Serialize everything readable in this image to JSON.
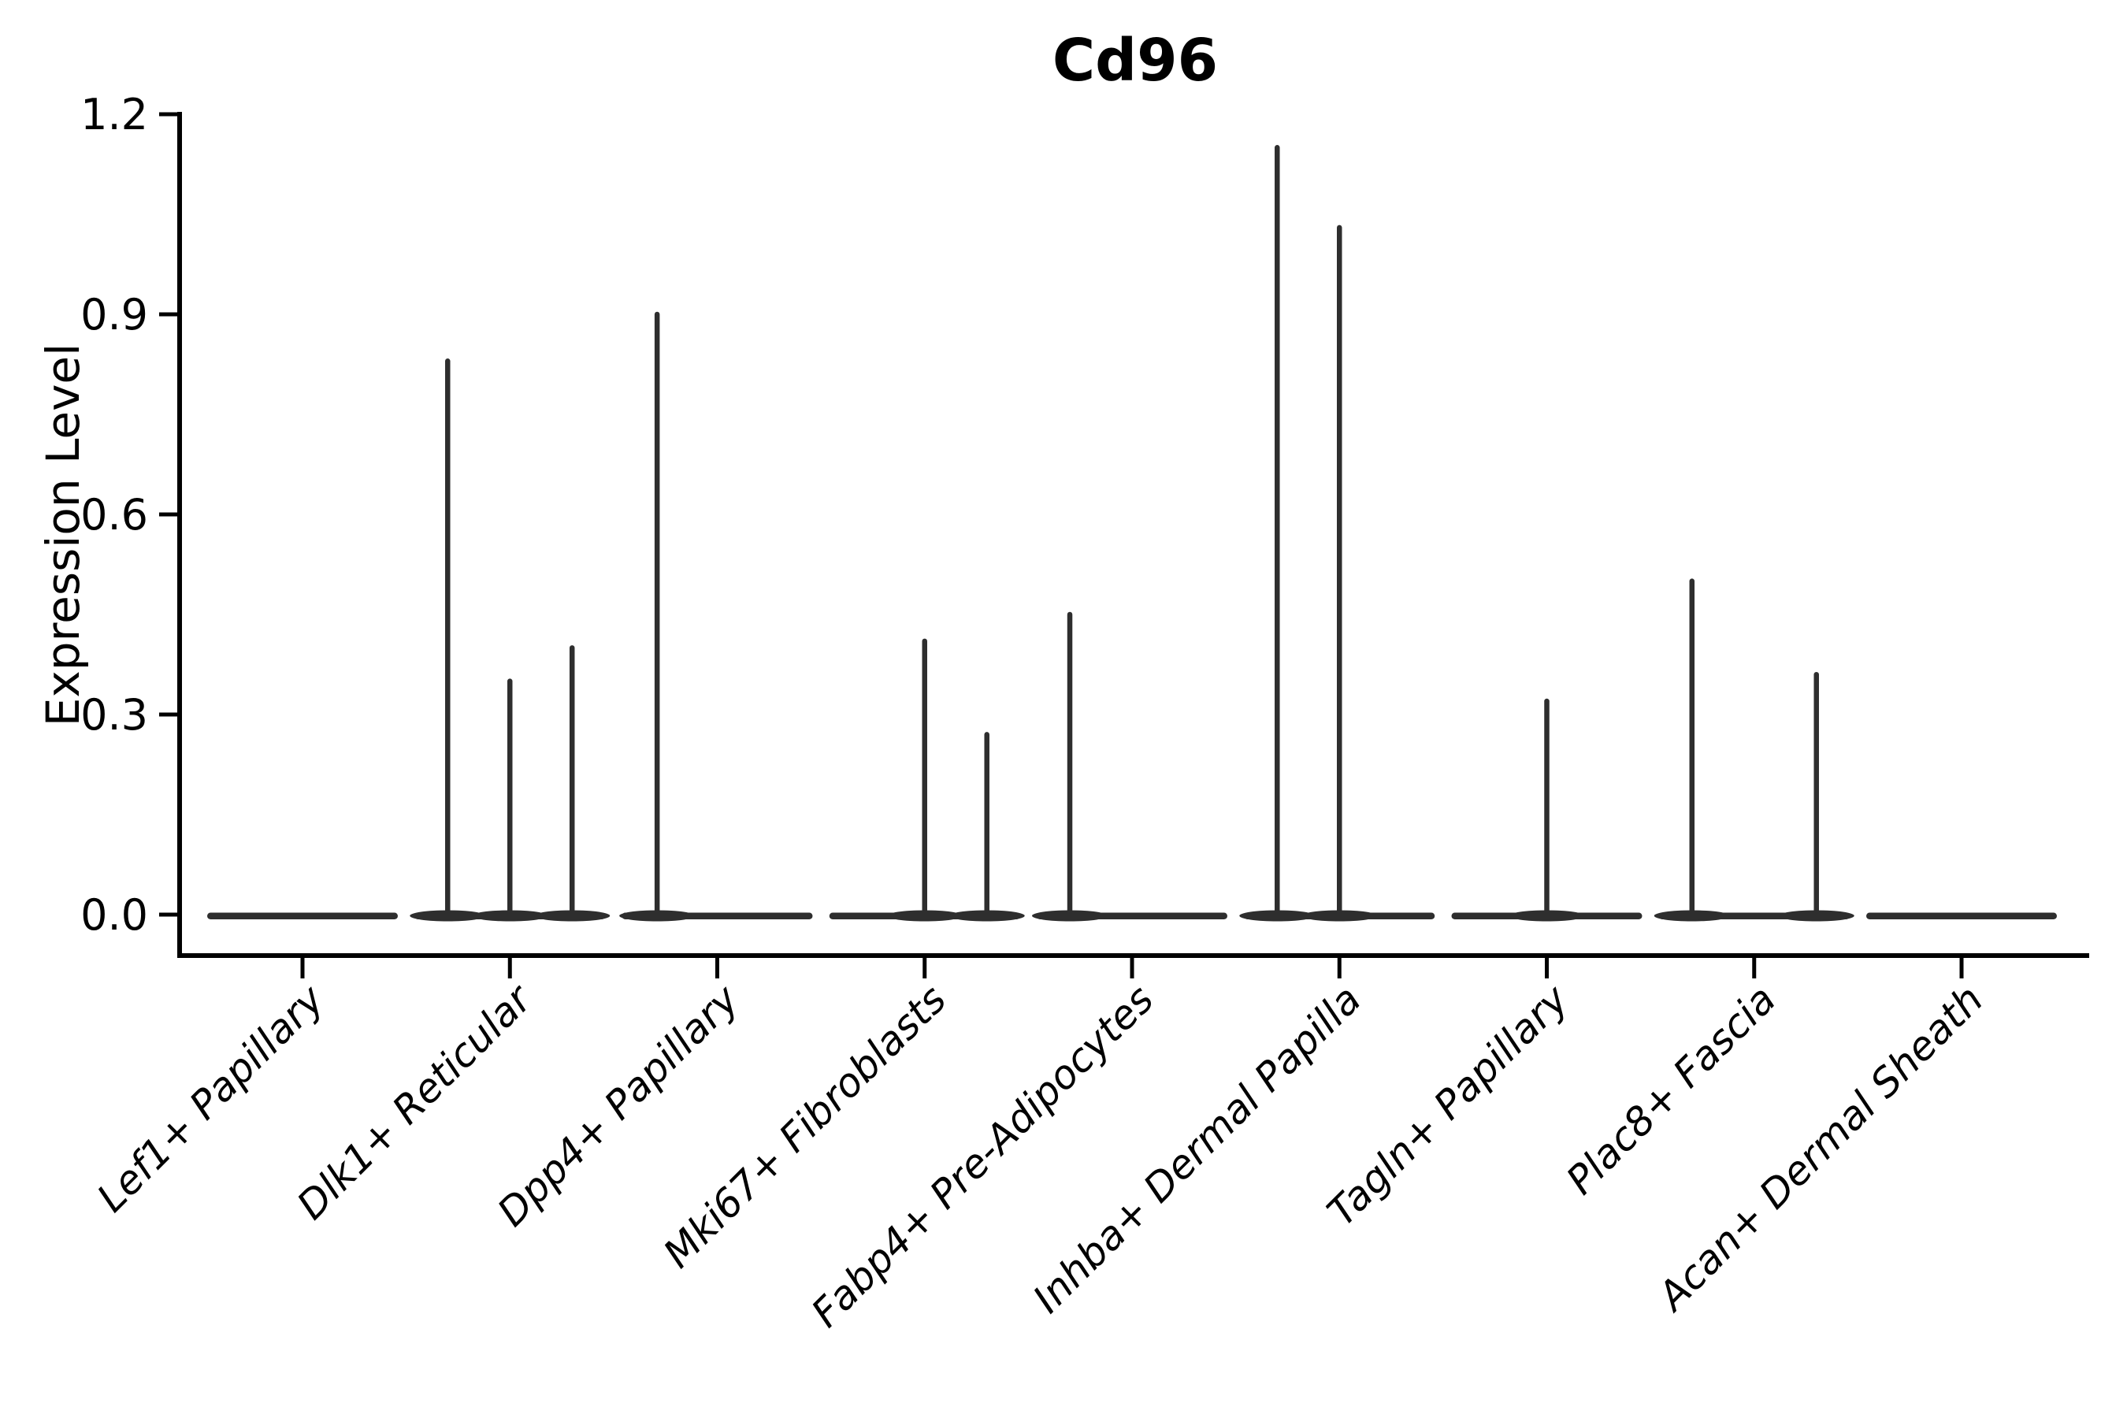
{
  "chart_data": {
    "type": "violin",
    "title": "Cd96",
    "ylabel": "Expression Level",
    "xlabel": "",
    "grid": false,
    "legend": "none",
    "ylim": [
      -0.06,
      1.2
    ],
    "yticks": [
      "0.0",
      "0.3",
      "0.6",
      "0.9",
      "1.2"
    ],
    "ytick_values": [
      0.0,
      0.3,
      0.6,
      0.9,
      1.2
    ],
    "categories": [
      "Lef1+ Papillary",
      "Dlk1+ Reticular",
      "Dpp4+ Papillary",
      "Mki67+ Fibroblasts",
      "Fabp4+ Pre-Adipocytes",
      "Inhba+ Dermal Papilla",
      "Tagln+ Papillary",
      "Plac8+ Fascia",
      "Acan+ Dermal Sheath"
    ],
    "violins": [
      {
        "category": "Lef1+ Papillary",
        "baseline_value": 0.0,
        "spikes": []
      },
      {
        "category": "Dlk1+ Reticular",
        "baseline_value": 0.0,
        "spikes": [
          {
            "pos": -0.3,
            "value": 0.83
          },
          {
            "pos": 0.0,
            "value": 0.35
          },
          {
            "pos": 0.3,
            "value": 0.4
          }
        ]
      },
      {
        "category": "Dpp4+ Papillary",
        "baseline_value": 0.0,
        "spikes": [
          {
            "pos": -0.29,
            "value": 0.9
          }
        ]
      },
      {
        "category": "Mki67+ Fibroblasts",
        "baseline_value": 0.0,
        "spikes": [
          {
            "pos": 0.0,
            "value": 0.41
          },
          {
            "pos": 0.3,
            "value": 0.27
          }
        ]
      },
      {
        "category": "Fabp4+ Pre-Adipocytes",
        "baseline_value": 0.0,
        "spikes": [
          {
            "pos": -0.3,
            "value": 0.45
          }
        ]
      },
      {
        "category": "Inhba+ Dermal Papilla",
        "baseline_value": 0.0,
        "spikes": [
          {
            "pos": -0.3,
            "value": 1.15
          },
          {
            "pos": 0.0,
            "value": 1.03
          }
        ]
      },
      {
        "category": "Tagln+ Papillary",
        "baseline_value": 0.0,
        "spikes": [
          {
            "pos": 0.0,
            "value": 0.32
          }
        ]
      },
      {
        "category": "Plac8+ Fascia",
        "baseline_value": 0.0,
        "spikes": [
          {
            "pos": -0.3,
            "value": 0.5
          },
          {
            "pos": 0.3,
            "value": 0.36
          }
        ]
      },
      {
        "category": "Acan+ Dermal Sheath",
        "baseline_value": 0.0,
        "spikes": []
      }
    ],
    "colors": {
      "violin_line": "#2e2e2e",
      "axis": "#000000",
      "text": "#000000",
      "background": "#ffffff"
    }
  }
}
